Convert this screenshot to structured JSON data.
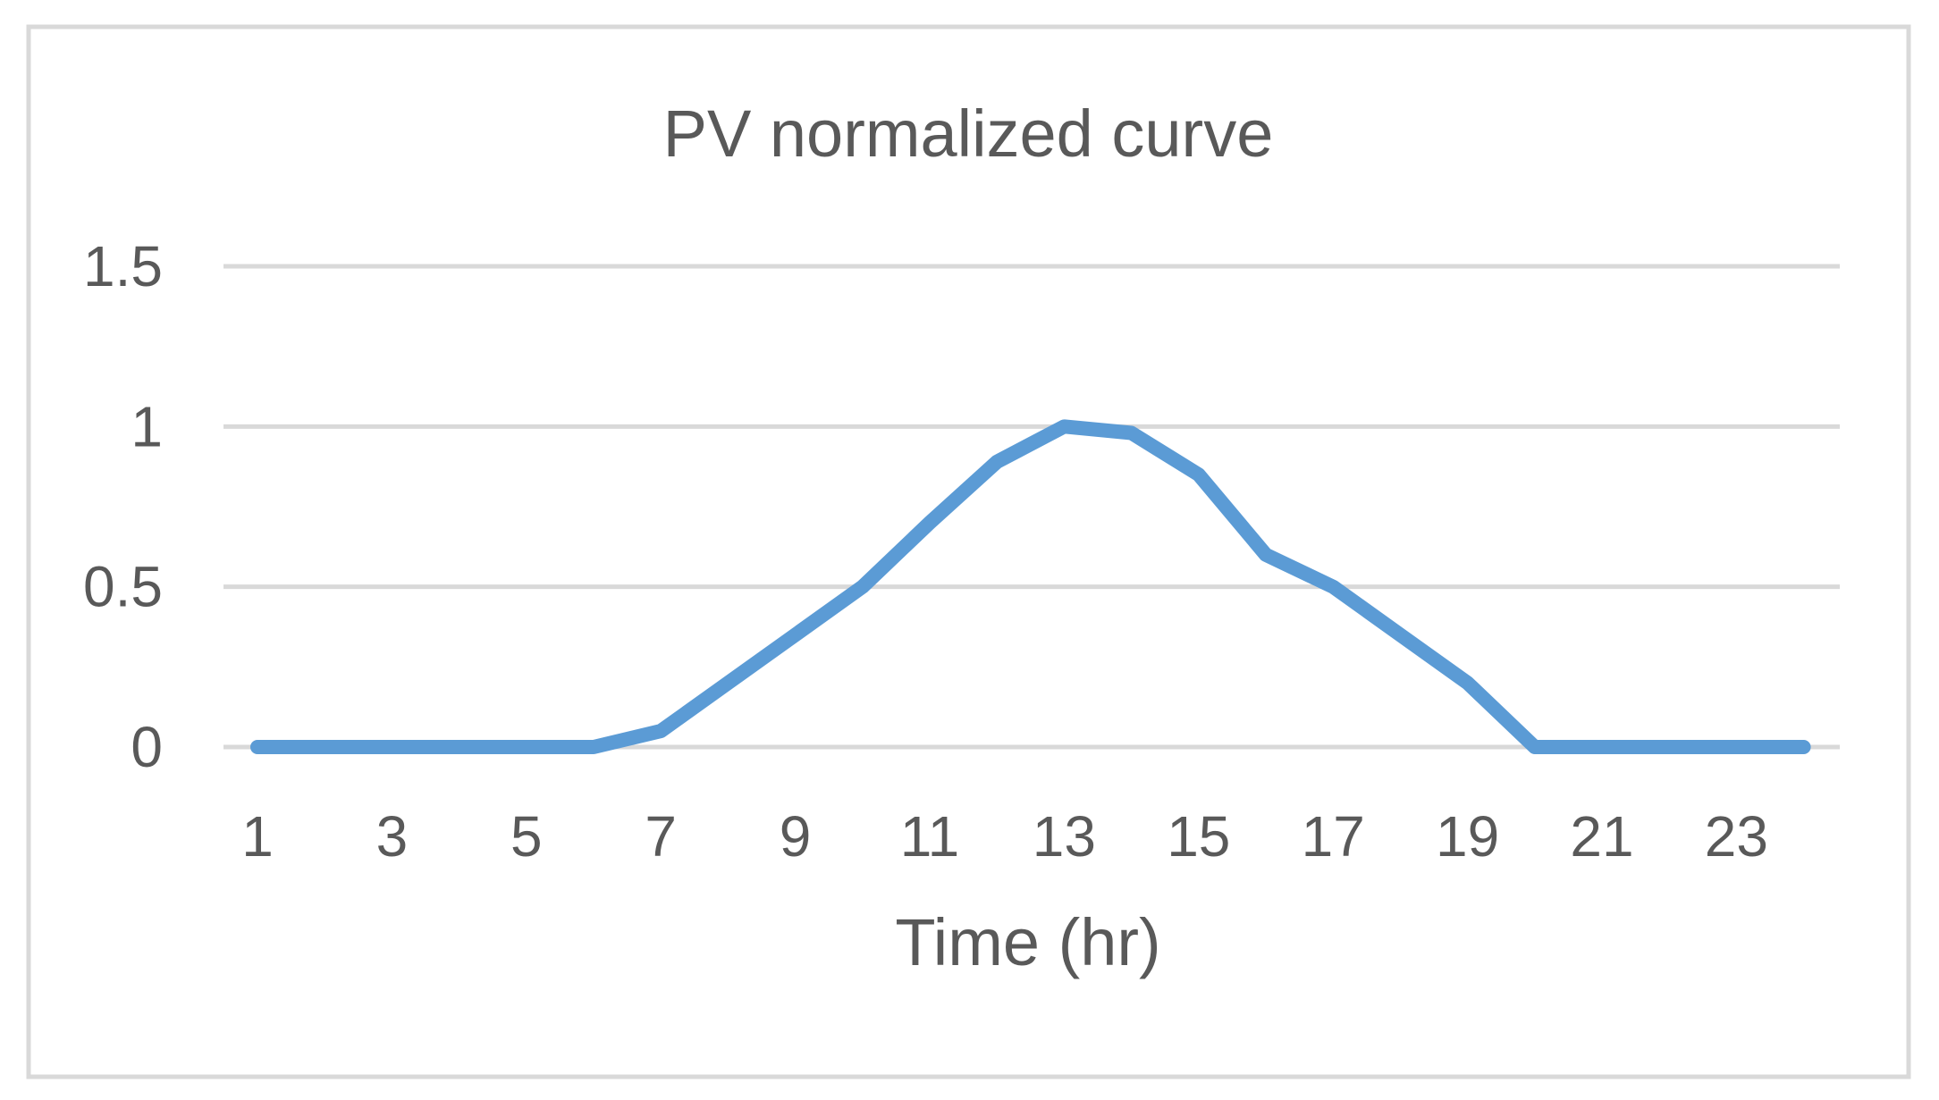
{
  "chart_data": {
    "type": "line",
    "title": "PV normalized curve",
    "xlabel": "Time (hr)",
    "ylabel": "",
    "x": [
      1,
      2,
      3,
      4,
      5,
      6,
      7,
      8,
      9,
      10,
      11,
      12,
      13,
      14,
      15,
      16,
      17,
      18,
      19,
      20,
      21,
      22,
      23,
      24
    ],
    "series": [
      {
        "name": "PV normalized",
        "values": [
          0,
          0,
          0,
          0,
          0,
          0,
          0.05,
          0.2,
          0.35,
          0.5,
          0.7,
          0.89,
          1.0,
          0.98,
          0.85,
          0.6,
          0.5,
          0.35,
          0.2,
          0,
          0,
          0,
          0,
          0
        ]
      }
    ],
    "ylim": [
      0,
      1.5
    ],
    "yticks": [
      "0",
      "0.5",
      "1",
      "1.5"
    ],
    "ytick_values": [
      0,
      0.5,
      1,
      1.5
    ],
    "xticks": [
      "1",
      "3",
      "5",
      "7",
      "9",
      "11",
      "13",
      "15",
      "17",
      "19",
      "21",
      "23"
    ],
    "xtick_values": [
      1,
      3,
      5,
      7,
      9,
      11,
      13,
      15,
      17,
      19,
      21,
      23
    ],
    "grid": true,
    "legend": "none"
  },
  "colors": {
    "line": "#5B9BD5",
    "grid": "#D9D9D9",
    "border": "#D9D9D9",
    "text": "#595959"
  }
}
